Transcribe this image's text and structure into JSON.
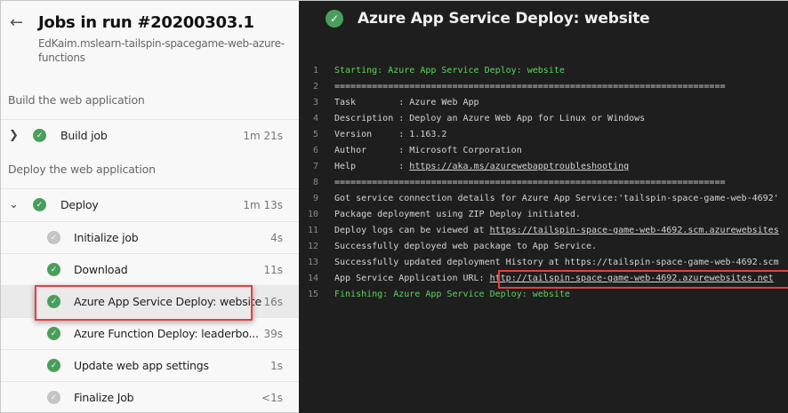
{
  "left": {
    "title": "Jobs in run #20200303.1",
    "subtitle": "EdKaim.mslearn-tailspin-spacegame-web-azure-functions",
    "sections": [
      {
        "label": "Build the web application"
      },
      {
        "label": "Deploy the web application"
      }
    ],
    "jobs": [
      {
        "label": "Build job",
        "duration": "1m 21s"
      },
      {
        "label": "Deploy",
        "duration": "1m 13s"
      }
    ],
    "steps": [
      {
        "label": "Initialize job",
        "duration": "4s",
        "status": "skipped"
      },
      {
        "label": "Download",
        "duration": "11s",
        "status": "succeeded"
      },
      {
        "label": "Azure App Service Deploy: website",
        "duration": "16s",
        "status": "succeeded"
      },
      {
        "label": "Azure Function Deploy: leaderbo...",
        "duration": "39s",
        "status": "succeeded"
      },
      {
        "label": "Update web app settings",
        "duration": "1s",
        "status": "succeeded"
      },
      {
        "label": "Finalize Job",
        "duration": "<1s",
        "status": "skipped"
      }
    ]
  },
  "right": {
    "title": "Azure App Service Deploy: website",
    "lines": [
      {
        "n": "1",
        "text": "Starting: Azure App Service Deploy: website",
        "link": ""
      },
      {
        "n": "2",
        "text": "=========================================================================",
        "link": ""
      },
      {
        "n": "3",
        "text": "Task        : Azure Web App",
        "link": ""
      },
      {
        "n": "4",
        "text": "Description : Deploy an Azure Web App for Linux or Windows",
        "link": ""
      },
      {
        "n": "5",
        "text": "Version     : 1.163.2",
        "link": ""
      },
      {
        "n": "6",
        "text": "Author      : Microsoft Corporation",
        "link": ""
      },
      {
        "n": "7",
        "text": "Help        : ",
        "link": "https://aka.ms/azurewebapptroubleshooting"
      },
      {
        "n": "8",
        "text": "=========================================================================",
        "link": ""
      },
      {
        "n": "9",
        "text": "Got service connection details for Azure App Service:'tailspin-space-game-web-4692'",
        "link": ""
      },
      {
        "n": "10",
        "text": "Package deployment using ZIP Deploy initiated.",
        "link": ""
      },
      {
        "n": "11",
        "text": "Deploy logs can be viewed at ",
        "link": "https://tailspin-space-game-web-4692.scm.azurewebsites"
      },
      {
        "n": "12",
        "text": "Successfully deployed web package to App Service.",
        "link": ""
      },
      {
        "n": "13",
        "text": "Successfully updated deployment History at https://tailspin-space-game-web-4692.scm",
        "link": ""
      },
      {
        "n": "14",
        "text": "App Service Application URL: ",
        "link": "http://tailspin-space-game-web-4692.azurewebsites.net"
      },
      {
        "n": "15",
        "text": "Finishing: Azure App Service Deploy: website",
        "link": ""
      }
    ]
  },
  "colors": {
    "success": "#4a9e5c",
    "highlight": "#e83e3e",
    "log_green": "#5fd35f"
  }
}
